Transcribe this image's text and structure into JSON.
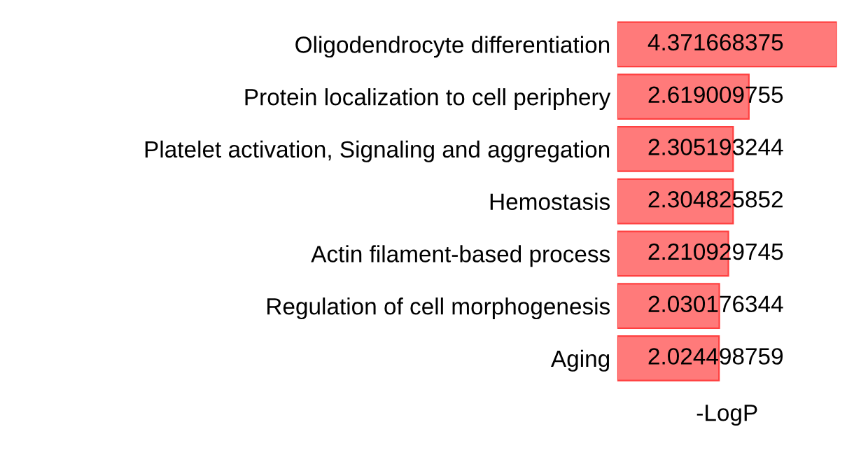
{
  "chart_data": {
    "type": "bar",
    "orientation": "horizontal",
    "xlabel": "-LogP",
    "categories": [
      "Oligodendrocyte differentiation",
      "Protein localization to cell periphery",
      "Platelet activation, Signaling and aggregation",
      "Hemostasis",
      "Actin filament-based process",
      "Regulation of cell morphogenesis",
      "Aging"
    ],
    "values": [
      4.371668375,
      2.619009755,
      2.305193244,
      2.304825852,
      2.210929745,
      2.030176344,
      2.024498759
    ],
    "color": "#ff7a7a",
    "data_labels": true,
    "tick_labels": "y",
    "grid": false,
    "legend": false
  }
}
